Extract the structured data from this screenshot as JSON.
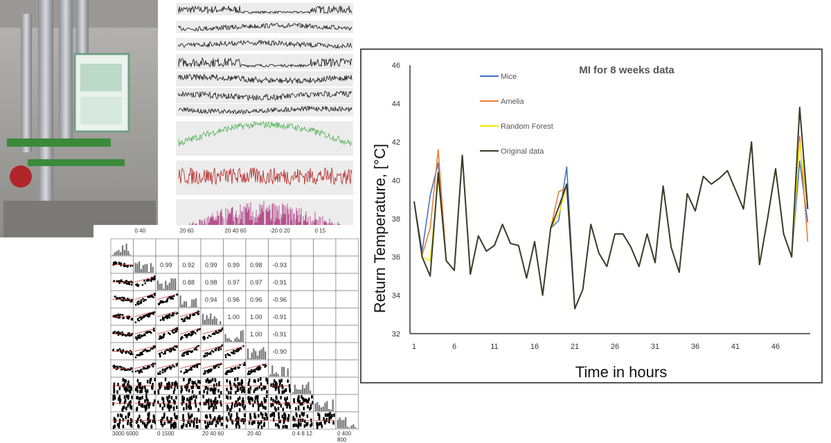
{
  "chart_data": {
    "type": "line",
    "title": "MI for 8 weeks data",
    "xlabel": "Time in hours",
    "ylabel": "Return Temperature, [°C]",
    "ylim": [
      32,
      46
    ],
    "yticks": [
      "32",
      "34",
      "36",
      "38",
      "40",
      "42",
      "44",
      "46"
    ],
    "xticks": [
      "1",
      "6",
      "11",
      "16",
      "21",
      "26",
      "31",
      "36",
      "41",
      "46"
    ],
    "xlim": [
      1,
      50
    ],
    "grid": false,
    "legend_position": "top-left",
    "x": [
      1,
      2,
      3,
      4,
      5,
      6,
      7,
      8,
      9,
      10,
      11,
      12,
      13,
      14,
      15,
      16,
      17,
      18,
      19,
      20,
      21,
      22,
      23,
      24,
      25,
      26,
      27,
      28,
      29,
      30,
      31,
      32,
      33,
      34,
      35,
      36,
      37,
      38,
      39,
      40,
      41,
      42,
      43,
      44,
      45,
      46,
      47,
      48,
      49,
      50
    ],
    "series": [
      {
        "name": "Mice",
        "color": "#4472c4",
        "values": [
          38.9,
          36.3,
          39.2,
          40.9,
          35.8,
          35.3,
          41.3,
          35.1,
          37.1,
          36.3,
          36.6,
          37.7,
          36.7,
          36.6,
          34.9,
          36.8,
          34.0,
          37.5,
          37.9,
          40.7,
          33.3,
          34.3,
          37.7,
          36.2,
          35.5,
          37.2,
          37.2,
          36.5,
          35.5,
          37.2,
          35.7,
          39.7,
          36.5,
          35.2,
          39.3,
          38.4,
          40.2,
          39.8,
          40.1,
          40.5,
          39.5,
          38.5,
          42.0,
          35.6,
          38.0,
          40.6,
          37.2,
          36.0,
          41.0,
          37.8
        ]
      },
      {
        "name": "Amelia",
        "color": "#ed7d31",
        "values": [
          38.9,
          36.1,
          37.5,
          41.6,
          35.8,
          35.3,
          41.3,
          35.1,
          37.1,
          36.3,
          36.6,
          37.7,
          36.7,
          36.6,
          34.9,
          36.8,
          34.0,
          37.5,
          39.4,
          39.6,
          33.3,
          34.3,
          37.7,
          36.2,
          35.5,
          37.2,
          37.2,
          36.5,
          35.5,
          37.2,
          35.7,
          39.7,
          36.5,
          35.2,
          39.3,
          38.4,
          40.2,
          39.8,
          40.1,
          40.5,
          39.5,
          38.5,
          42.0,
          35.6,
          38.0,
          40.6,
          37.2,
          36.0,
          42.3,
          36.8
        ]
      },
      {
        "name": "Random Forest",
        "color": "#f2e600",
        "values": [
          38.9,
          36.0,
          35.8,
          40.1,
          35.8,
          35.3,
          41.3,
          35.1,
          37.1,
          36.3,
          36.6,
          37.7,
          36.7,
          36.6,
          34.9,
          36.8,
          34.0,
          37.5,
          38.2,
          39.7,
          33.3,
          34.3,
          37.7,
          36.2,
          35.5,
          37.2,
          37.2,
          36.5,
          35.5,
          37.2,
          35.7,
          39.7,
          36.5,
          35.2,
          39.3,
          38.4,
          40.2,
          39.8,
          40.1,
          40.5,
          39.5,
          38.5,
          42.0,
          35.6,
          38.0,
          40.6,
          37.2,
          36.0,
          42.0,
          38.5
        ]
      },
      {
        "name": "Original data",
        "color": "#3b3b2c",
        "values": [
          38.9,
          36.0,
          35.0,
          40.4,
          35.8,
          35.3,
          41.3,
          35.1,
          37.1,
          36.3,
          36.6,
          37.7,
          36.7,
          36.6,
          34.9,
          36.8,
          34.0,
          37.5,
          38.6,
          39.8,
          33.3,
          34.3,
          37.7,
          36.2,
          35.5,
          37.2,
          37.2,
          36.5,
          35.5,
          37.2,
          35.7,
          39.7,
          36.5,
          35.2,
          39.3,
          38.4,
          40.2,
          39.8,
          40.1,
          40.5,
          39.5,
          38.5,
          42.0,
          35.6,
          38.0,
          40.6,
          37.2,
          36.0,
          43.8,
          38.5
        ]
      }
    ]
  },
  "pairplot": {
    "correlations": [
      [
        "0.99",
        "0.92",
        "0.99",
        "0.99",
        "0.98",
        "-0.93"
      ],
      [
        "0.88",
        "0.98",
        "0.97",
        "0.97",
        "-0.91"
      ],
      [
        "0.94",
        "0.96",
        "0.96",
        "-0.96"
      ],
      [
        "1.00",
        "1.00",
        "-0.91"
      ],
      [
        "1.00",
        "-0.91"
      ],
      [
        "-0.90"
      ]
    ],
    "top_ticks": [
      "0   40",
      "20   60",
      "20  40  60",
      "-20   0   20",
      "0  15"
    ],
    "bottom_ticks": [
      "3000  6000",
      "0   1500",
      "20  40  60",
      "20   40",
      "0  4  8  12",
      "0  400  800"
    ]
  },
  "colors": {
    "ambient": "#4caf50",
    "wind": "#b22222",
    "solar": "#b5538f"
  }
}
